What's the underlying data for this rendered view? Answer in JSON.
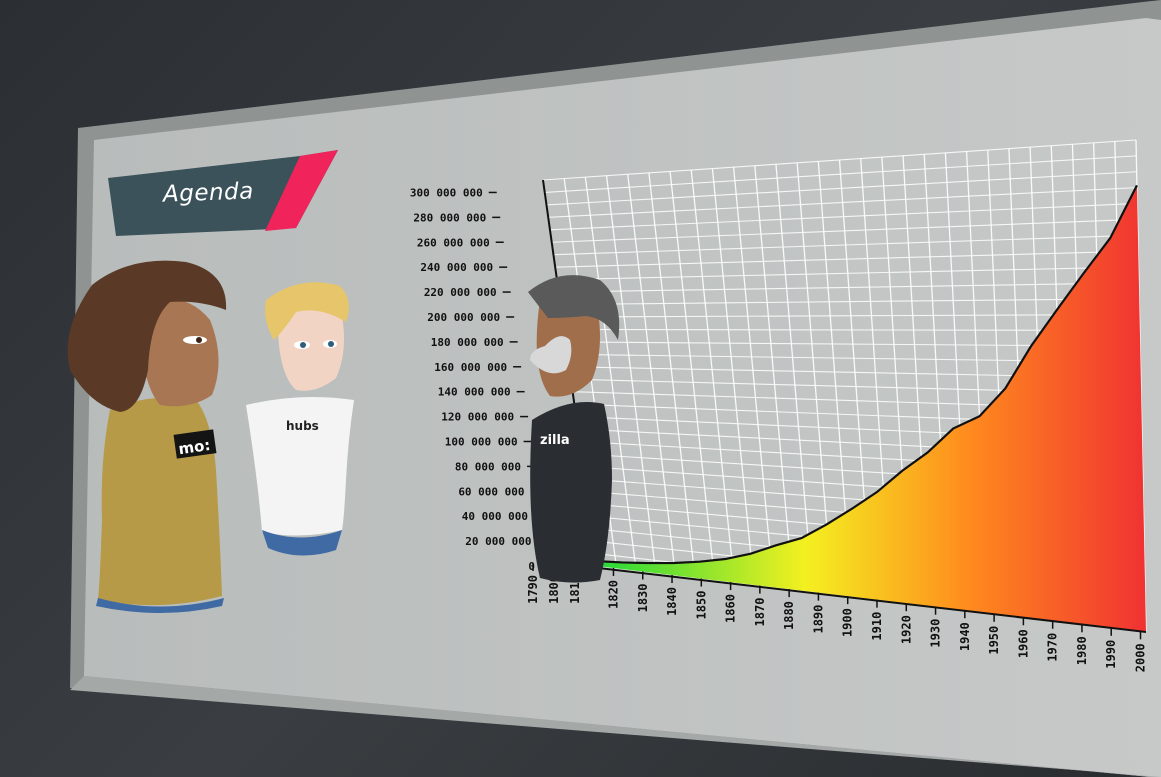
{
  "board": {
    "agenda_label": "Agenda"
  },
  "avatars": {
    "woman_shirt_text": "mo:",
    "robot_shirt_text": "hubs",
    "man_shirt_text": "zilla"
  },
  "chart_data": {
    "type": "area",
    "title": "",
    "xlabel": "",
    "ylabel": "",
    "grid": true,
    "x": [
      1790,
      1800,
      1810,
      1820,
      1830,
      1840,
      1850,
      1860,
      1870,
      1880,
      1890,
      1900,
      1910,
      1920,
      1930,
      1940,
      1950,
      1960,
      1970,
      1980,
      1990,
      2000
    ],
    "values": [
      3900000,
      5300000,
      7200000,
      9600000,
      12900000,
      17100000,
      23200000,
      31400000,
      38600000,
      50200000,
      62900000,
      76200000,
      92200000,
      106000000,
      123200000,
      132200000,
      151300000,
      179300000,
      203300000,
      226500000,
      248700000,
      281400000
    ],
    "ylim": [
      0,
      310000000
    ],
    "ytick_labels": [
      "0",
      "20 000 000",
      "40 000 000",
      "60 000 000",
      "80 000 000",
      "100 000 000",
      "120 000 000",
      "140 000 000",
      "160 000 000",
      "180 000 000",
      "200 000 000",
      "220 000 000",
      "240 000 000",
      "260 000 000",
      "280 000 000",
      "300 000 000"
    ],
    "xtick_labels": [
      "1790",
      "1800",
      "1810",
      "1820",
      "1830",
      "1840",
      "1850",
      "1860",
      "1870",
      "1880",
      "1890",
      "1900",
      "1910",
      "1920",
      "1930",
      "1940",
      "1950",
      "1960",
      "1970",
      "1980",
      "1990",
      "2000"
    ],
    "fill_gradient": [
      "#22d83a",
      "#f4f020",
      "#ff8a1e",
      "#f03232"
    ]
  }
}
